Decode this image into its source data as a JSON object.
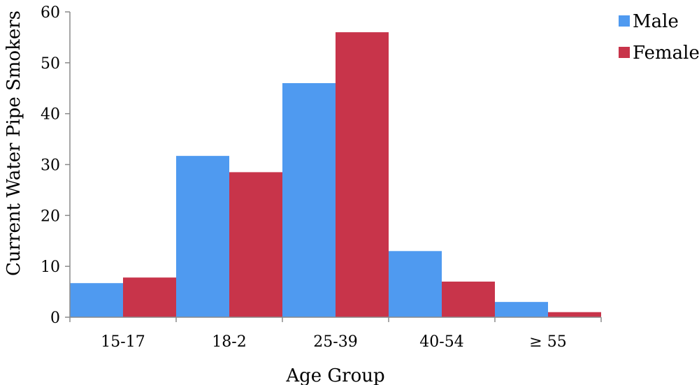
{
  "chart_data": {
    "type": "bar",
    "title": "",
    "xlabel": "Age Group",
    "ylabel": "Current Water Pipe Smokers",
    "categories": [
      "15-17",
      "18-2",
      "25-39",
      "40-54",
      "≥ 55"
    ],
    "series": [
      {
        "name": "Male",
        "color": "#4F9AF0",
        "values": [
          6.7,
          31.7,
          46,
          13,
          3
        ]
      },
      {
        "name": "Female",
        "color": "#C8344A",
        "values": [
          7.8,
          28.5,
          56,
          7,
          1
        ]
      }
    ],
    "ylim": [
      0,
      60
    ],
    "yticks": [
      "0",
      "10",
      "20",
      "30",
      "40",
      "50",
      "60"
    ],
    "grid": false,
    "legend_position": "top-right"
  }
}
